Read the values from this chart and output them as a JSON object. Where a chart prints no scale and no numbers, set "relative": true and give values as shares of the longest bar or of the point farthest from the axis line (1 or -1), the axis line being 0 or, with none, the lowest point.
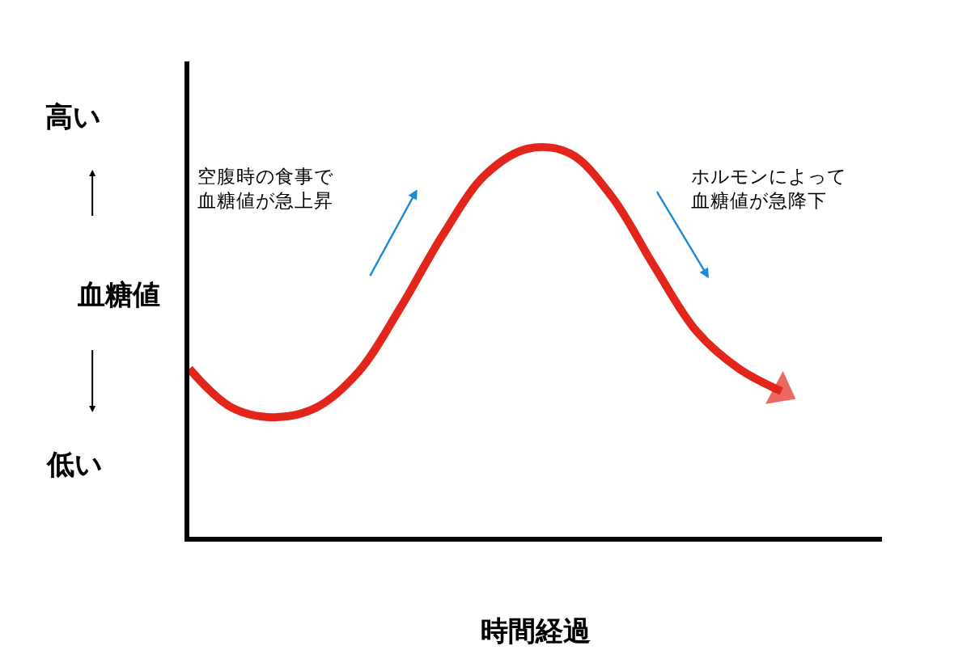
{
  "chart_data": {
    "type": "line",
    "relative": true,
    "xlabel": "時間経過",
    "ylabel": "血糖値",
    "categories": [
      null,
      null,
      null,
      null,
      null,
      null,
      null,
      null,
      null,
      null,
      null,
      null,
      null,
      null,
      null
    ],
    "series": [
      {
        "color": "#e3261b",
        "values": [
          0.433,
          0.333,
          0.308,
          0.333,
          0.425,
          0.592,
          0.779,
          0.933,
          1.0,
          0.988,
          0.875,
          0.696,
          0.529,
          0.433,
          0.375
        ]
      }
    ],
    "annotations": [
      "高い",
      "低い",
      "空腹時の食事で血糖値が急上昇",
      "ホルモンによって血糖値が急降下"
    ],
    "marker": "none",
    "line_style": "solid"
  }
}
